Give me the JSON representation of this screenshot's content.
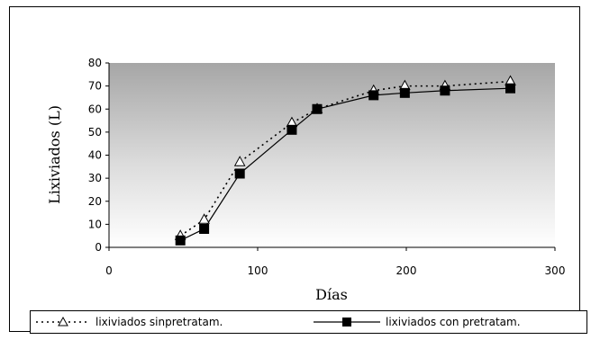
{
  "chart_data": {
    "type": "line",
    "title": "",
    "xlabel": "Días",
    "ylabel": "Lixiviados (L)",
    "xlim": [
      0,
      300
    ],
    "ylim": [
      0,
      80
    ],
    "xticks": [
      0,
      100,
      200,
      300
    ],
    "yticks": [
      0,
      10,
      20,
      30,
      40,
      50,
      60,
      70,
      80
    ],
    "legend_position": "bottom",
    "plot_background": "gray-gradient",
    "series": [
      {
        "name": "lixiviados sinpretratam.",
        "marker": "open-triangle",
        "line_style": "dotted",
        "color": "#000000",
        "x": [
          48,
          64,
          88,
          123,
          140,
          178,
          199,
          226,
          270
        ],
        "y": [
          5,
          12,
          37,
          54,
          60,
          68,
          70,
          70,
          72
        ]
      },
      {
        "name": "lixiviados con pretratam.",
        "marker": "filled-square",
        "line_style": "solid",
        "color": "#000000",
        "x": [
          48,
          64,
          88,
          123,
          140,
          178,
          199,
          226,
          270
        ],
        "y": [
          3,
          8,
          32,
          51,
          60,
          66,
          67,
          68,
          69
        ]
      }
    ]
  }
}
